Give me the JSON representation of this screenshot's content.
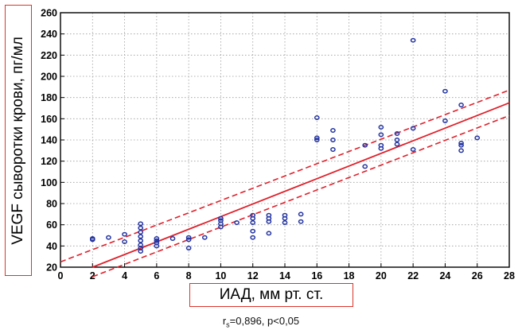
{
  "chart_data": {
    "type": "scatter",
    "xlabel": "ИАД, мм рт. ст.",
    "ylabel": "VEGF сыворотки крови, пг/мл",
    "annotation": {
      "r_symbol": "r",
      "r_subscript": "s",
      "text": "=0,896, p<0,05"
    },
    "xlim": [
      0,
      28
    ],
    "ylim": [
      20,
      260
    ],
    "xticks": [
      0,
      2,
      4,
      6,
      8,
      10,
      12,
      14,
      16,
      18,
      20,
      22,
      24,
      26,
      28
    ],
    "yticks": [
      20,
      40,
      60,
      80,
      100,
      120,
      140,
      160,
      180,
      200,
      220,
      240,
      260
    ],
    "grid": true,
    "points": [
      [
        2,
        46
      ],
      [
        2,
        47
      ],
      [
        3,
        48
      ],
      [
        4,
        51
      ],
      [
        4,
        44
      ],
      [
        5,
        61
      ],
      [
        5,
        57
      ],
      [
        5,
        53
      ],
      [
        5,
        49
      ],
      [
        5,
        45
      ],
      [
        5,
        41
      ],
      [
        5,
        38
      ],
      [
        5,
        35
      ],
      [
        6,
        47
      ],
      [
        6,
        45
      ],
      [
        6,
        43
      ],
      [
        6,
        40
      ],
      [
        7,
        47
      ],
      [
        8,
        48
      ],
      [
        8,
        46
      ],
      [
        8,
        38
      ],
      [
        9,
        48
      ],
      [
        10,
        66
      ],
      [
        10,
        64
      ],
      [
        10,
        61
      ],
      [
        10,
        58
      ],
      [
        11,
        62
      ],
      [
        12,
        69
      ],
      [
        12,
        66
      ],
      [
        12,
        62
      ],
      [
        12,
        54
      ],
      [
        12,
        48
      ],
      [
        13,
        69
      ],
      [
        13,
        66
      ],
      [
        13,
        63
      ],
      [
        13,
        52
      ],
      [
        14,
        69
      ],
      [
        14,
        66
      ],
      [
        14,
        62
      ],
      [
        15,
        70
      ],
      [
        15,
        63
      ],
      [
        16,
        161
      ],
      [
        16,
        142
      ],
      [
        16,
        140
      ],
      [
        17,
        149
      ],
      [
        17,
        140
      ],
      [
        17,
        131
      ],
      [
        19,
        135
      ],
      [
        19,
        115
      ],
      [
        20,
        152
      ],
      [
        20,
        145
      ],
      [
        20,
        135
      ],
      [
        20,
        132
      ],
      [
        21,
        146
      ],
      [
        21,
        140
      ],
      [
        21,
        136
      ],
      [
        22,
        234
      ],
      [
        22,
        151
      ],
      [
        22,
        131
      ],
      [
        24,
        186
      ],
      [
        24,
        158
      ],
      [
        25,
        173
      ],
      [
        25,
        137
      ],
      [
        25,
        135
      ],
      [
        25,
        130
      ],
      [
        26,
        142
      ]
    ],
    "fit_line": {
      "x": [
        2,
        28
      ],
      "y": [
        20,
        175
      ]
    },
    "confidence_band": {
      "upper": {
        "x": [
          0,
          28
        ],
        "y": [
          25,
          187
        ]
      },
      "lower": {
        "x": [
          2,
          28
        ],
        "y": [
          11,
          163
        ]
      }
    },
    "colors": {
      "points": "#2233a0",
      "fit": "#e0202a",
      "band": "#e0202a",
      "grid": "#9a9a9a"
    }
  }
}
